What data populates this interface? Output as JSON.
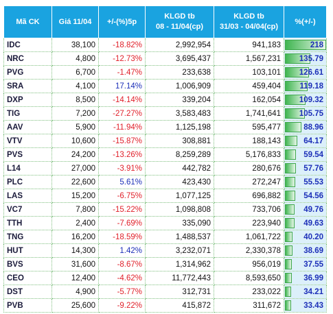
{
  "table": {
    "header": [
      "Mã CK",
      "Giá 11/04",
      "+/-(%)5p",
      "KLGD tb\n08 - 11/04(cp)",
      "KLGD tb\n31/03 - 04/04(cp)",
      "%(+/-)"
    ],
    "rows": [
      [
        "IDC",
        "38,100",
        "-18.82%",
        "2,992,954",
        "941,183",
        "218"
      ],
      [
        "NRC",
        "4,800",
        "-12.73%",
        "3,695,437",
        "1,567,231",
        "135.79"
      ],
      [
        "PVG",
        "6,700",
        "-1.47%",
        "233,638",
        "103,101",
        "126.61"
      ],
      [
        "SRA",
        "4,100",
        "17.14%",
        "1,006,909",
        "459,404",
        "119.18"
      ],
      [
        "DXP",
        "8,500",
        "-14.14%",
        "339,204",
        "162,054",
        "109.32"
      ],
      [
        "TIG",
        "7,200",
        "-27.27%",
        "3,583,483",
        "1,741,641",
        "105.75"
      ],
      [
        "AAV",
        "5,900",
        "-11.94%",
        "1,125,198",
        "595,477",
        "88.96"
      ],
      [
        "VTV",
        "10,600",
        "-15.87%",
        "308,881",
        "188,143",
        "64.17"
      ],
      [
        "PVS",
        "24,200",
        "-13.26%",
        "8,259,289",
        "5,176,833",
        "59.54"
      ],
      [
        "L14",
        "27,000",
        "-3.91%",
        "442,782",
        "280,676",
        "57.76"
      ],
      [
        "PLC",
        "22,600",
        "5.61%",
        "423,430",
        "272,247",
        "55.53"
      ],
      [
        "LAS",
        "15,200",
        "-6.75%",
        "1,077,125",
        "696,882",
        "54.56"
      ],
      [
        "VC7",
        "7,800",
        "-15.22%",
        "1,098,808",
        "733,706",
        "49.76"
      ],
      [
        "TTH",
        "2,400",
        "-7.69%",
        "335,090",
        "223,940",
        "49.63"
      ],
      [
        "TNG",
        "16,200",
        "-18.59%",
        "1,488,537",
        "1,061,722",
        "40.20"
      ],
      [
        "HUT",
        "14,300",
        "1.42%",
        "3,232,071",
        "2,330,378",
        "38.69"
      ],
      [
        "BVS",
        "31,600",
        "-8.67%",
        "1,314,962",
        "956,019",
        "37.55"
      ],
      [
        "CEO",
        "12,400",
        "-4.62%",
        "11,772,443",
        "8,593,650",
        "36.99"
      ],
      [
        "DST",
        "4,900",
        "-5.77%",
        "312,731",
        "233,022",
        "34.21"
      ],
      [
        "PVB",
        "25,600",
        "-9.22%",
        "415,872",
        "311,672",
        "33.43"
      ]
    ]
  }
}
